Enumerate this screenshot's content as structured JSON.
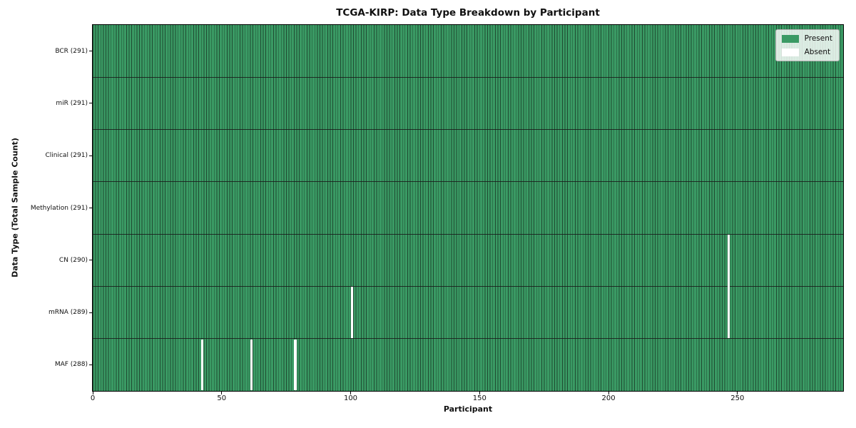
{
  "chart_data": {
    "type": "heatmap",
    "title": "TCGA-KIRP: Data Type Breakdown by Participant",
    "xlabel": "Participant",
    "ylabel": "Data Type (Total Sample Count)",
    "x_ticks": [
      0,
      50,
      100,
      150,
      200,
      250
    ],
    "x_range": [
      0,
      291
    ],
    "n_participants": 291,
    "rows": [
      {
        "label": "BCR (291)",
        "sample_count": 291,
        "absent_participants": []
      },
      {
        "label": "miR (291)",
        "sample_count": 291,
        "absent_participants": []
      },
      {
        "label": "Clinical (291)",
        "sample_count": 291,
        "absent_participants": []
      },
      {
        "label": "Methylation (291)",
        "sample_count": 291,
        "absent_participants": []
      },
      {
        "label": "CN (290)",
        "sample_count": 290,
        "absent_participants": [
          246
        ]
      },
      {
        "label": "mRNA (289)",
        "sample_count": 289,
        "absent_participants": [
          100,
          246
        ]
      },
      {
        "label": "MAF (288)",
        "sample_count": 288,
        "absent_participants": [
          42,
          61,
          78
        ]
      }
    ],
    "legend": [
      {
        "label": "Present",
        "color": "#3a9a64"
      },
      {
        "label": "Absent",
        "color": "#ffffff"
      }
    ],
    "legend_position": "upper right",
    "grid": false,
    "colors": {
      "present": "#3a9a64",
      "absent": "#ffffff",
      "cell_edge": "#1f4a31",
      "row_separator": "#1a1a1a"
    }
  }
}
